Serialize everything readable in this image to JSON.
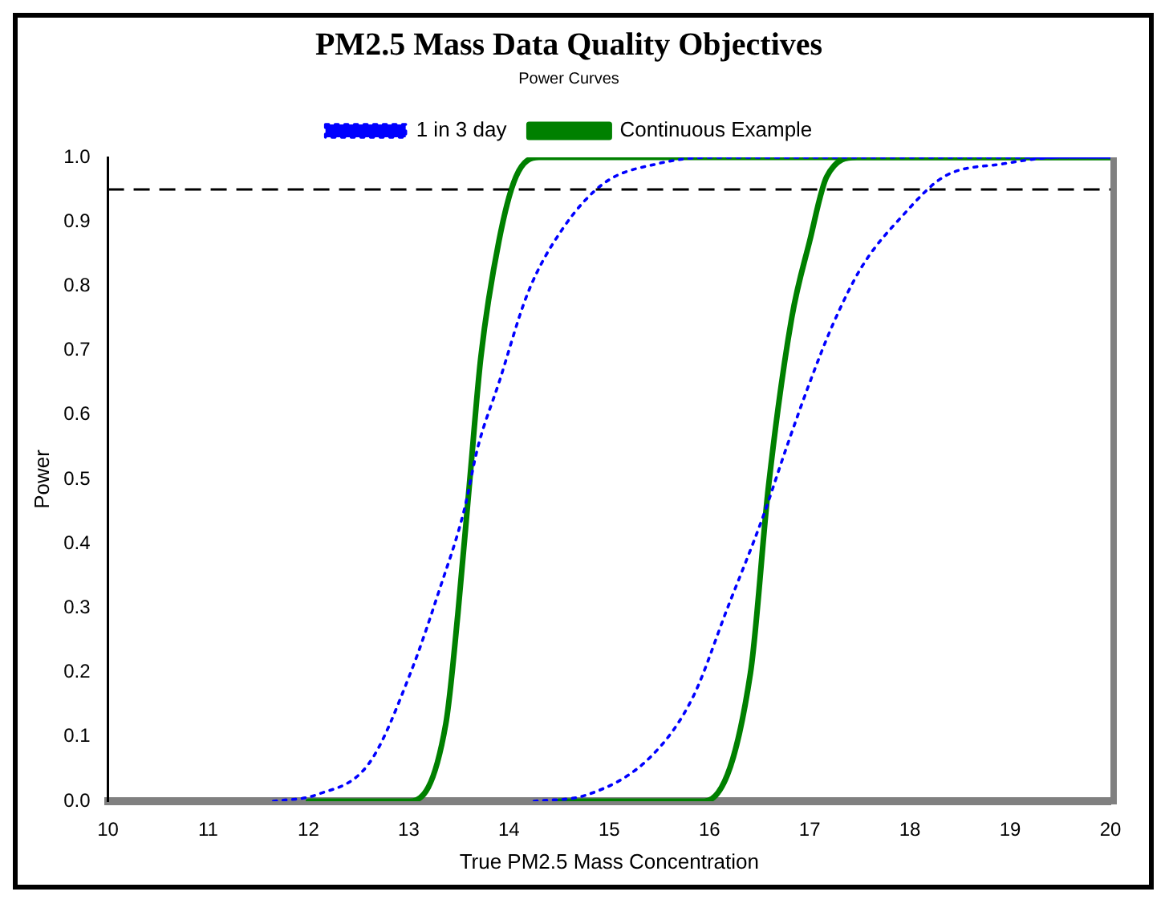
{
  "chart_data": {
    "type": "line",
    "title": "PM2.5 Mass Data Quality Objectives",
    "subtitle": "Power Curves",
    "xlabel": "True PM2.5 Mass Concentration",
    "ylabel": "Power",
    "xlim": [
      10,
      20
    ],
    "xticks": [
      10,
      11,
      12,
      13,
      14,
      15,
      16,
      17,
      18,
      19,
      20
    ],
    "ylim": [
      0,
      1
    ],
    "yticks": [
      {
        "value": 0,
        "label": "0.0"
      },
      0.1,
      0.2,
      0.3,
      0.4,
      0.5,
      0.6,
      0.7,
      0.8,
      0.9,
      {
        "value": 1,
        "label": "1.0"
      }
    ],
    "grid": false,
    "legend": "top",
    "marker": "none",
    "ref_lines": [
      {
        "axis": "y",
        "value": 0.95,
        "color": "#000000",
        "line_style": "dashed"
      }
    ],
    "series": [
      {
        "name": "Continuous Example",
        "color": "#008000",
        "line_style": "solid",
        "x": [
          12.0,
          13.02,
          13.37,
          13.49,
          13.61,
          13.72,
          13.9,
          14.07,
          14.3,
          20
        ],
        "values": [
          0,
          0,
          0.12,
          0.29,
          0.5,
          0.69,
          0.87,
          0.97,
          1,
          1
        ]
      },
      {
        "name": "1 in 3 day",
        "color": "#0000ff",
        "line_style": "dotted",
        "x": [
          11.65,
          12.08,
          12.61,
          13.02,
          13.31,
          13.55,
          13.69,
          13.9,
          14.19,
          14.54,
          14.95,
          15.48,
          16.0,
          20
        ],
        "values": [
          0,
          0.01,
          0.06,
          0.2,
          0.33,
          0.45,
          0.55,
          0.65,
          0.79,
          0.89,
          0.96,
          0.99,
          1,
          1
        ]
      },
      {
        "color": "#008000",
        "line_style": "solid",
        "x": [
          14.5,
          15.95,
          16.41,
          16.59,
          16.82,
          17.0,
          17.17,
          17.47,
          20
        ],
        "values": [
          0,
          0,
          0.2,
          0.49,
          0.75,
          0.87,
          0.97,
          1,
          1
        ]
      },
      {
        "color": "#0000ff",
        "line_style": "dotted",
        "x": [
          14.25,
          14.78,
          15.42,
          15.83,
          16.18,
          16.53,
          16.77,
          17.0,
          17.23,
          17.52,
          17.93,
          18.34,
          18.93,
          19.5,
          20
        ],
        "values": [
          0,
          0.01,
          0.07,
          0.16,
          0.3,
          0.44,
          0.55,
          0.65,
          0.74,
          0.83,
          0.91,
          0.97,
          0.99,
          1,
          1
        ]
      }
    ]
  }
}
